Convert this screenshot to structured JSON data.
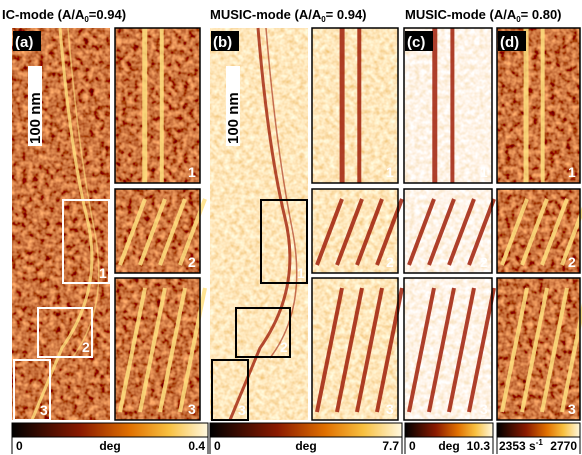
{
  "titles": [
    {
      "pre": "IC-mode (A/A",
      "sub": "0",
      "post": "=0.94)"
    },
    {
      "pre": "MUSIC-mode (A/A",
      "sub": "0",
      "post": "= 0.94)"
    },
    {
      "pre": "MUSIC-mode (A/A",
      "sub": "0",
      "post": "= 0.80)"
    }
  ],
  "panels": [
    {
      "label": "(a)",
      "scale_bar": "100 nm",
      "insets": [
        "1",
        "2",
        "3"
      ],
      "colorbar": {
        "min": "0",
        "unit": "deg",
        "max": "0.4"
      }
    },
    {
      "label": "(b)",
      "scale_bar": "100 nm",
      "insets": [
        "1",
        "2",
        "3"
      ],
      "colorbar": {
        "min": "0",
        "unit": "deg",
        "max": "7.7"
      }
    },
    {
      "label": "(c)",
      "insets": [
        "1",
        "2",
        "3"
      ],
      "colorbar": {
        "min": "0",
        "unit": "deg",
        "max": "10.3"
      }
    },
    {
      "label": "(d)",
      "insets": [
        "1",
        "2",
        "3"
      ],
      "colorbar": {
        "min": "2353 s",
        "min_sup": "-1",
        "max": "2770"
      }
    }
  ]
}
